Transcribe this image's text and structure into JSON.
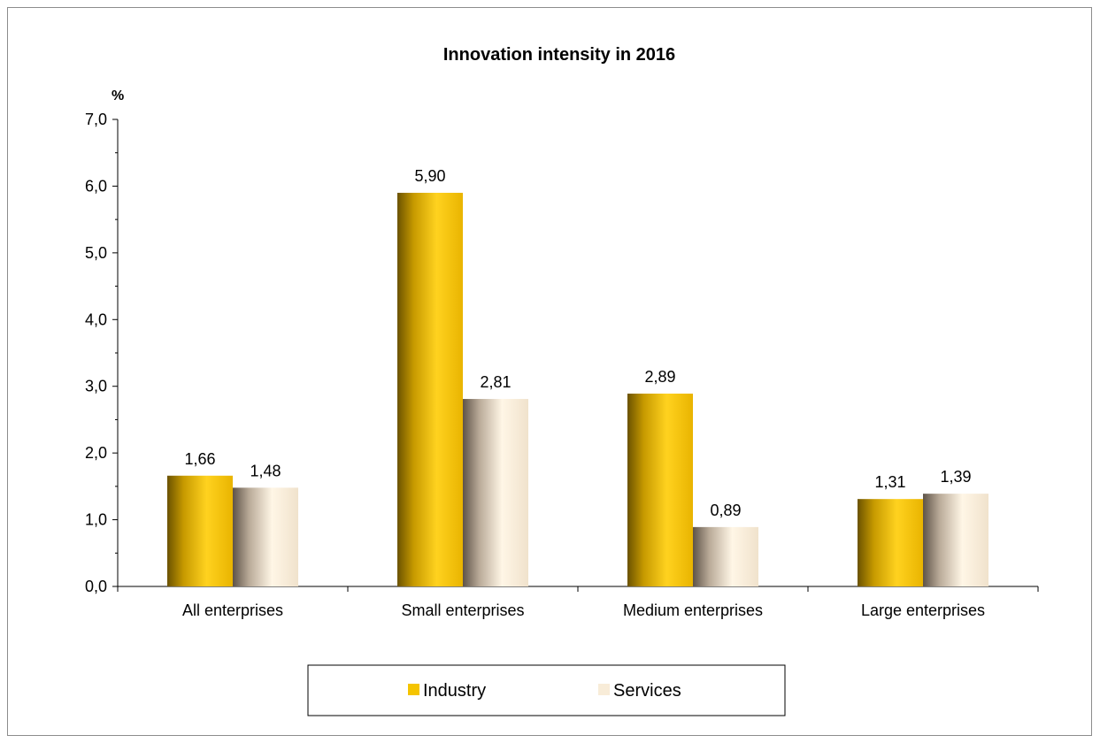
{
  "chart_data": {
    "type": "bar",
    "title": "Innovation intensity in 2016",
    "ylabel": "%",
    "xlabel": "",
    "categories": [
      "All enterprises",
      "Small enterprises",
      "Medium enterprises",
      "Large enterprises"
    ],
    "series": [
      {
        "name": "Industry",
        "values": [
          1.66,
          5.9,
          2.89,
          1.31
        ],
        "labels": [
          "1,66",
          "5,90",
          "2,89",
          "1,31"
        ]
      },
      {
        "name": "Services",
        "values": [
          1.48,
          2.81,
          0.89,
          1.39
        ],
        "labels": [
          "1,48",
          "2,81",
          "0,89",
          "1,39"
        ]
      }
    ],
    "ylim": [
      0,
      7
    ],
    "yticks": [
      0,
      1,
      2,
      3,
      4,
      5,
      6,
      7
    ],
    "ytick_labels": [
      "0,0",
      "1,0",
      "2,0",
      "3,0",
      "4,0",
      "5,0",
      "6,0",
      "7,0"
    ],
    "grid": false,
    "legend_position": "bottom"
  },
  "colors": {
    "industry": "#f5c400",
    "services": "#f8ecd8"
  }
}
